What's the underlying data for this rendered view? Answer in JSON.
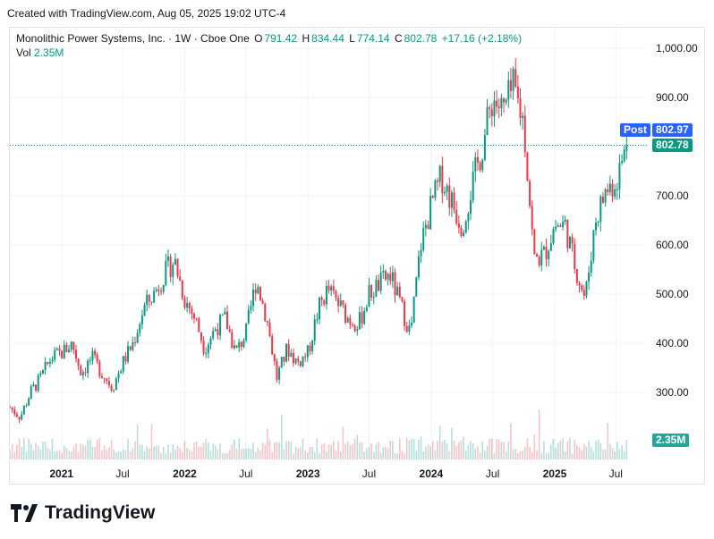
{
  "header": {
    "created_text": "Created with TradingView.com, Aug 05, 2025 19:02 UTC-4"
  },
  "legend": {
    "symbol": "Monolithic Power Systems, Inc. · 1W · Cboe One",
    "o_label": "O",
    "o_value": "791.42",
    "h_label": "H",
    "h_value": "834.44",
    "l_label": "L",
    "l_value": "774.14",
    "c_label": "C",
    "c_value": "802.78",
    "change": "+17.16 (+2.18%)",
    "vol_label": "Vol",
    "vol_value": "2.35M"
  },
  "tags": {
    "post_label": "Post",
    "post_price": "802.97",
    "last_price": "802.78",
    "volume": "2.35M"
  },
  "colors": {
    "up": "#089981",
    "down": "#f23645",
    "post": "#2962ff",
    "grid": "#f0f3fa"
  },
  "footer": {
    "brand": "TradingView"
  },
  "chart_data": {
    "type": "candlestick",
    "interval": "1W",
    "y_ticks": [
      "1,000.00",
      "900.00",
      "800.00",
      "700.00",
      "600.00",
      "500.00",
      "400.00",
      "300.00"
    ],
    "y_tick_values": [
      1000,
      900,
      800,
      700,
      600,
      500,
      400,
      300
    ],
    "ylim": [
      215,
      1035
    ],
    "x_ticks": [
      "2021",
      "Jul",
      "2022",
      "Jul",
      "2023",
      "Jul",
      "2024",
      "Jul",
      "2025",
      "Jul"
    ],
    "x_tick_dates": [
      "2021-01-01",
      "2021-07-01",
      "2022-01-01",
      "2022-07-01",
      "2023-01-01",
      "2023-07-01",
      "2024-01-01",
      "2024-07-01",
      "2025-01-01",
      "2025-07-01"
    ],
    "x_range": [
      "2020-08-01",
      "2025-10-01"
    ],
    "last_date": "2025-08-04",
    "weekly_close_anchors": [
      [
        "2020-08-01",
        270
      ],
      [
        "2020-09-01",
        250
      ],
      [
        "2020-10-01",
        300
      ],
      [
        "2020-11-01",
        330
      ],
      [
        "2020-12-01",
        370
      ],
      [
        "2021-01-01",
        380
      ],
      [
        "2021-02-01",
        400
      ],
      [
        "2021-03-01",
        340
      ],
      [
        "2021-04-01",
        370
      ],
      [
        "2021-05-01",
        340
      ],
      [
        "2021-06-01",
        310
      ],
      [
        "2021-07-01",
        360
      ],
      [
        "2021-08-01",
        400
      ],
      [
        "2021-09-01",
        470
      ],
      [
        "2021-10-01",
        500
      ],
      [
        "2021-11-01",
        540
      ],
      [
        "2021-12-01",
        570
      ],
      [
        "2022-01-01",
        490
      ],
      [
        "2022-02-01",
        450
      ],
      [
        "2022-03-01",
        390
      ],
      [
        "2022-04-01",
        430
      ],
      [
        "2022-05-01",
        450
      ],
      [
        "2022-06-01",
        380
      ],
      [
        "2022-07-01",
        420
      ],
      [
        "2022-08-01",
        530
      ],
      [
        "2022-09-01",
        450
      ],
      [
        "2022-10-01",
        330
      ],
      [
        "2022-11-01",
        390
      ],
      [
        "2022-12-01",
        360
      ],
      [
        "2023-01-01",
        380
      ],
      [
        "2023-02-01",
        470
      ],
      [
        "2023-03-01",
        510
      ],
      [
        "2023-04-01",
        480
      ],
      [
        "2023-05-01",
        450
      ],
      [
        "2023-06-01",
        440
      ],
      [
        "2023-07-01",
        500
      ],
      [
        "2023-08-01",
        520
      ],
      [
        "2023-09-01",
        540
      ],
      [
        "2023-10-01",
        480
      ],
      [
        "2023-11-01",
        420
      ],
      [
        "2023-12-01",
        600
      ],
      [
        "2024-01-01",
        680
      ],
      [
        "2024-02-01",
        740
      ],
      [
        "2024-03-01",
        690
      ],
      [
        "2024-04-01",
        640
      ],
      [
        "2024-05-01",
        720
      ],
      [
        "2024-06-01",
        800
      ],
      [
        "2024-07-01",
        900
      ],
      [
        "2024-08-01",
        870
      ],
      [
        "2024-09-01",
        920
      ],
      [
        "2024-10-01",
        850
      ],
      [
        "2024-11-01",
        570
      ],
      [
        "2024-12-01",
        580
      ],
      [
        "2025-01-01",
        640
      ],
      [
        "2025-02-01",
        640
      ],
      [
        "2025-03-01",
        560
      ],
      [
        "2025-04-01",
        490
      ],
      [
        "2025-05-01",
        650
      ],
      [
        "2025-06-01",
        710
      ],
      [
        "2025-07-01",
        730
      ],
      [
        "2025-08-04",
        802.78
      ]
    ],
    "last_candle": {
      "open": 791.42,
      "high": 834.44,
      "low": 774.14,
      "close": 802.78,
      "volume": "2.35M"
    },
    "post_market_price": 802.97
  }
}
